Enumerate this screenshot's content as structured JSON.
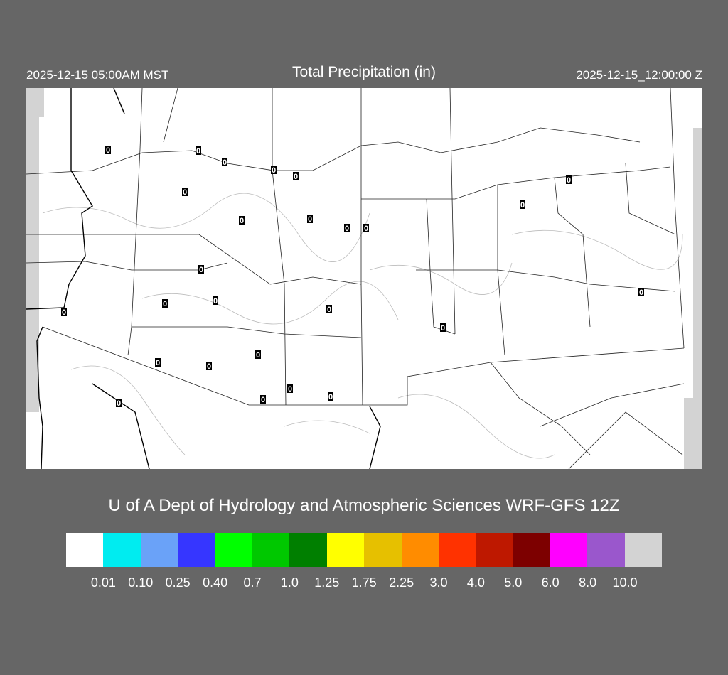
{
  "header": {
    "title": "Total Precipitation (in)",
    "local_time": "2025-12-15 05:00AM MST",
    "valid_time": "2025-12-15_12:00:00 Z"
  },
  "credit": "U of A Dept of Hydrology and Atmospheric Sciences WRF-GFS 12Z",
  "colorbar": {
    "colors": [
      "#ffffff",
      "#00ecf0",
      "#6aa2f8",
      "#3636ff",
      "#00ff00",
      "#00c800",
      "#007f00",
      "#ffff00",
      "#e6c000",
      "#ff8c00",
      "#ff3200",
      "#be1800",
      "#7d0000",
      "#ff00ff",
      "#9a57cc",
      "#d3d3d3"
    ],
    "labels": [
      "0.01",
      "0.10",
      "0.25",
      "0.40",
      "0.7",
      "1.0",
      "1.25",
      "1.75",
      "2.25",
      "3.0",
      "4.0",
      "5.0",
      "6.0",
      "8.0",
      "10.0"
    ]
  },
  "stations": [
    "0",
    "0",
    "0",
    "0",
    "0",
    "0",
    "0",
    "0",
    "0",
    "0",
    "0",
    "0",
    "0",
    "0",
    "0",
    "0",
    "0",
    "0",
    "0",
    "0",
    "0",
    "0",
    "0",
    "0",
    "0",
    "0"
  ]
}
